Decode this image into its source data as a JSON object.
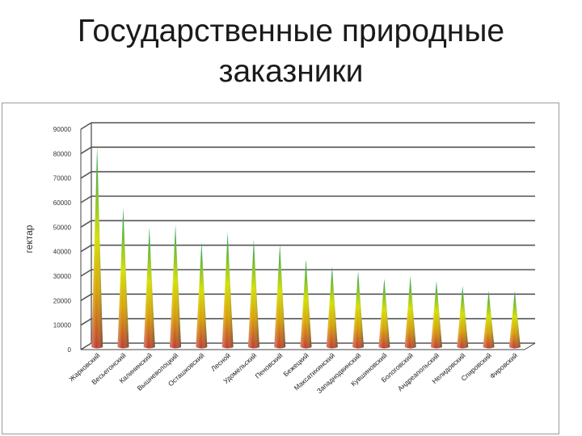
{
  "slide": {
    "title_line1": "Государственные природные",
    "title_line2": "заказники"
  },
  "chart_data": {
    "type": "bar",
    "bar_shape": "cone",
    "ylabel": "гектар",
    "ylim": [
      0,
      90000
    ],
    "yticks": [
      "0",
      "10000",
      "20000",
      "30000",
      "40000",
      "50000",
      "60000",
      "70000",
      "80000",
      "90000"
    ],
    "grid": true,
    "categories": [
      "Жарковский",
      "Весьегонский",
      "Калининский",
      "Вышневолоцкий",
      "Осташковский",
      "Лесной",
      "Удомельский",
      "Пеновский",
      "Бежецкий",
      "Максатихинский",
      "Западнодвинский",
      "Кувшиновский",
      "Бологовский",
      "Андреапольский",
      "Нелидовский",
      "Спировский",
      "Фировский"
    ],
    "values": [
      81000,
      56000,
      48000,
      49000,
      42000,
      46000,
      43000,
      41000,
      35000,
      32000,
      30000,
      27000,
      28000,
      26000,
      24000,
      22000,
      22000
    ],
    "colors": {
      "base": "#c0392b",
      "mid": "#c8d800",
      "top": "#1a9a52",
      "grid": "#555555"
    }
  }
}
